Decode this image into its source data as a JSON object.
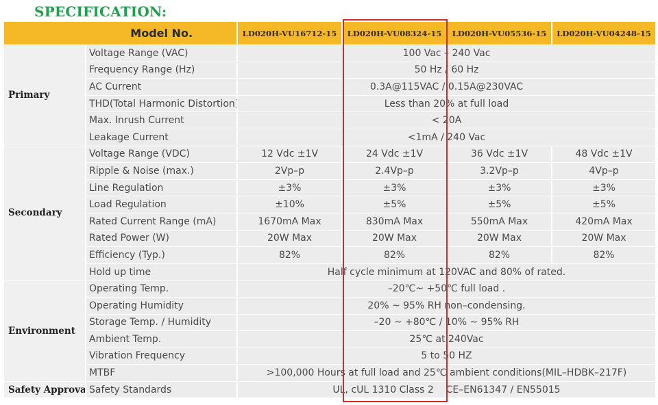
{
  "title": "SPECIFICATION:",
  "header": {
    "label": "Model No.",
    "models": [
      "LD020H-VU16712-15",
      "LD020H-VU08324-15",
      "LD020H-VU05536-15",
      "LD020H-VU04248-15"
    ]
  },
  "groups": {
    "primary": "Primary",
    "secondary": "Secondary",
    "environment": "Environment",
    "safety": "Safety Approval"
  },
  "rows": {
    "primary": [
      {
        "param": "Voltage Range (VAC)",
        "value": "100 Vac – 240 Vac"
      },
      {
        "param": "Frequency Range (Hz)",
        "value": "50 Hz / 60 Hz"
      },
      {
        "param": "AC Current",
        "value": "0.3A@115VAC / 0.15A@230VAC"
      },
      {
        "param": "THD(Total Harmonic Distortion)",
        "value": "Less than 20% at full load"
      },
      {
        "param": "Max. Inrush Current",
        "value": "< 20A"
      },
      {
        "param": "Leakage Current",
        "value": "<1mA / 240 Vac"
      }
    ],
    "secondary": [
      {
        "param": "Voltage Range (VDC)",
        "values": [
          "12 Vdc ±1V",
          "24 Vdc ±1V",
          "36 Vdc ±1V",
          "48 Vdc ±1V"
        ]
      },
      {
        "param": "Ripple & Noise (max.)",
        "values": [
          "2Vp–p",
          "2.4Vp–p",
          "3.2Vp–p",
          "4Vp–p"
        ]
      },
      {
        "param": "Line Regulation",
        "values": [
          "±3%",
          "±3%",
          "±3%",
          "±3%"
        ]
      },
      {
        "param": "Load Regulation",
        "values": [
          "±10%",
          "±5%",
          "±5%",
          "±5%"
        ]
      },
      {
        "param": "Rated Current Range (mA)",
        "values": [
          "1670mA Max",
          "830mA Max",
          "550mA Max",
          "420mA Max"
        ]
      },
      {
        "param": "Rated Power (W)",
        "values": [
          "20W Max",
          "20W Max",
          "20W Max",
          "20W Max"
        ]
      },
      {
        "param": "Efficiency (Typ.)",
        "values": [
          "82%",
          "82%",
          "82%",
          "82%"
        ]
      },
      {
        "param": "Hold up time",
        "value": "Half cycle minimum at 120VAC and 80% of rated."
      }
    ],
    "environment": [
      {
        "param": "Operating Temp.",
        "value": "–20℃~ +50℃ full load ."
      },
      {
        "param": "Operating Humidity",
        "value": "20% ~ 95% RH non–condensing."
      },
      {
        "param": "Storage Temp. / Humidity",
        "value": "–20 ~ +80℃ / 10% ~ 95% RH"
      },
      {
        "param": "Ambient Temp.",
        "value": "25℃ at 240Vac"
      },
      {
        "param": "Vibration Frequency",
        "value": "5 to 50 HZ"
      },
      {
        "param": "MTBF",
        "value": ">100,000 Hours at full load and 25℃ ambient conditions(MIL–HDBK–217F)"
      }
    ],
    "safety": [
      {
        "param": "Safety Standards",
        "value": "UL, cUL 1310 Class 2    CE–EN61347 / EN55015"
      }
    ]
  },
  "colors": {
    "title": "#20a04a",
    "header_bg": "#f5b826",
    "cell_bg": "#ececec",
    "highlight_border": "#d42a2a"
  }
}
